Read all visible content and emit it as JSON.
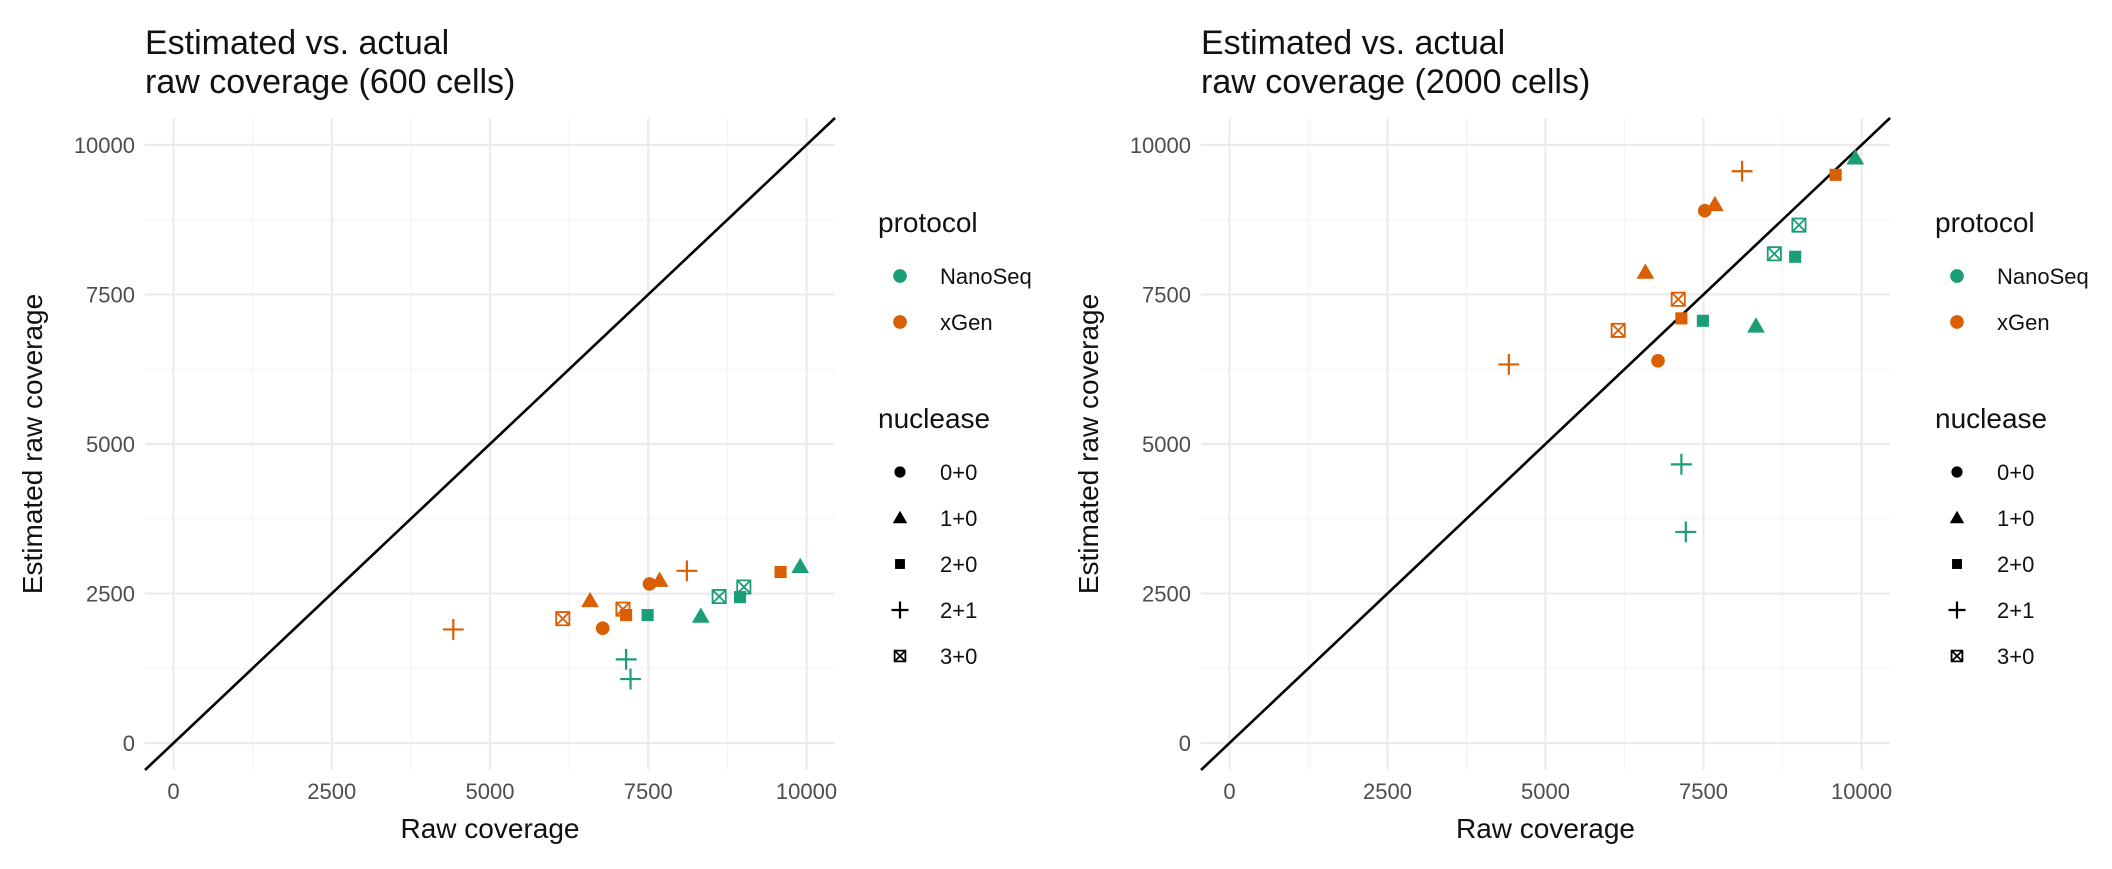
{
  "colors": {
    "NanoSeq": "#1b9e77",
    "xGen": "#d95f02",
    "legend_key": "#000000",
    "identity_line": "#000000"
  },
  "chart_data": [
    {
      "type": "scatter",
      "title": [
        "Estimated vs. actual",
        "raw coverage (600 cells)"
      ],
      "xlabel": "Raw coverage",
      "ylabel": "Estimated raw coverage",
      "xlim": [
        -450,
        10450
      ],
      "ylim": [
        -450,
        10450
      ],
      "x_ticks": [
        0,
        2500,
        5000,
        7500,
        10000
      ],
      "y_ticks": [
        0,
        2500,
        5000,
        7500,
        10000
      ],
      "x_tick_labels": [
        "0",
        "2500",
        "5000",
        "7500",
        "10000"
      ],
      "y_tick_labels": [
        "0",
        "2500",
        "5000",
        "7500",
        "10000"
      ],
      "grid": true,
      "reference_line": "y = x",
      "points": [
        {
          "x": 6780,
          "y": 1920,
          "protocol": "xGen",
          "nuclease": "0+0"
        },
        {
          "x": 7520,
          "y": 2660,
          "protocol": "xGen",
          "nuclease": "0+0"
        },
        {
          "x": 6580,
          "y": 2380,
          "protocol": "xGen",
          "nuclease": "1+0"
        },
        {
          "x": 7680,
          "y": 2720,
          "protocol": "xGen",
          "nuclease": "1+0"
        },
        {
          "x": 7150,
          "y": 2140,
          "protocol": "xGen",
          "nuclease": "2+0"
        },
        {
          "x": 9590,
          "y": 2860,
          "protocol": "xGen",
          "nuclease": "2+0"
        },
        {
          "x": 4420,
          "y": 1900,
          "protocol": "xGen",
          "nuclease": "2+1"
        },
        {
          "x": 8110,
          "y": 2880,
          "protocol": "xGen",
          "nuclease": "2+1"
        },
        {
          "x": 6150,
          "y": 2080,
          "protocol": "xGen",
          "nuclease": "3+0"
        },
        {
          "x": 7100,
          "y": 2240,
          "protocol": "xGen",
          "nuclease": "3+0"
        },
        {
          "x": 8330,
          "y": 2120,
          "protocol": "NanoSeq",
          "nuclease": "1+0"
        },
        {
          "x": 9900,
          "y": 2950,
          "protocol": "NanoSeq",
          "nuclease": "1+0"
        },
        {
          "x": 7490,
          "y": 2140,
          "protocol": "NanoSeq",
          "nuclease": "2+0"
        },
        {
          "x": 8950,
          "y": 2440,
          "protocol": "NanoSeq",
          "nuclease": "2+0"
        },
        {
          "x": 7150,
          "y": 1400,
          "protocol": "NanoSeq",
          "nuclease": "2+1"
        },
        {
          "x": 7220,
          "y": 1070,
          "protocol": "NanoSeq",
          "nuclease": "2+1"
        },
        {
          "x": 8620,
          "y": 2450,
          "protocol": "NanoSeq",
          "nuclease": "3+0"
        },
        {
          "x": 9010,
          "y": 2610,
          "protocol": "NanoSeq",
          "nuclease": "3+0"
        }
      ],
      "legends": [
        {
          "title": "protocol",
          "items": [
            {
              "label": "NanoSeq",
              "shape": "circle",
              "color": "#1b9e77"
            },
            {
              "label": "xGen",
              "shape": "circle",
              "color": "#d95f02"
            }
          ]
        },
        {
          "title": "nuclease",
          "items": [
            {
              "label": "0+0",
              "shape": "circle"
            },
            {
              "label": "1+0",
              "shape": "triangle"
            },
            {
              "label": "2+0",
              "shape": "square"
            },
            {
              "label": "2+1",
              "shape": "plus"
            },
            {
              "label": "3+0",
              "shape": "square-cross"
            }
          ]
        }
      ],
      "legend_position": "right"
    },
    {
      "type": "scatter",
      "title": [
        "Estimated vs. actual",
        "raw coverage (2000 cells)"
      ],
      "xlabel": "Raw coverage",
      "ylabel": "Estimated raw coverage",
      "xlim": [
        -450,
        10450
      ],
      "ylim": [
        -450,
        10450
      ],
      "x_ticks": [
        0,
        2500,
        5000,
        7500,
        10000
      ],
      "y_ticks": [
        0,
        2500,
        5000,
        7500,
        10000
      ],
      "x_tick_labels": [
        "0",
        "2500",
        "5000",
        "7500",
        "10000"
      ],
      "y_tick_labels": [
        "0",
        "2500",
        "5000",
        "7500",
        "10000"
      ],
      "grid": true,
      "reference_line": "y = x",
      "points": [
        {
          "x": 6780,
          "y": 6390,
          "protocol": "xGen",
          "nuclease": "0+0"
        },
        {
          "x": 7520,
          "y": 8900,
          "protocol": "xGen",
          "nuclease": "0+0"
        },
        {
          "x": 6580,
          "y": 7870,
          "protocol": "xGen",
          "nuclease": "1+0"
        },
        {
          "x": 7680,
          "y": 9000,
          "protocol": "xGen",
          "nuclease": "1+0"
        },
        {
          "x": 7150,
          "y": 7100,
          "protocol": "xGen",
          "nuclease": "2+0"
        },
        {
          "x": 9590,
          "y": 9500,
          "protocol": "xGen",
          "nuclease": "2+0"
        },
        {
          "x": 4420,
          "y": 6330,
          "protocol": "xGen",
          "nuclease": "2+1"
        },
        {
          "x": 8110,
          "y": 9560,
          "protocol": "xGen",
          "nuclease": "2+1"
        },
        {
          "x": 6150,
          "y": 6900,
          "protocol": "xGen",
          "nuclease": "3+0"
        },
        {
          "x": 7100,
          "y": 7420,
          "protocol": "xGen",
          "nuclease": "3+0"
        },
        {
          "x": 8330,
          "y": 6970,
          "protocol": "NanoSeq",
          "nuclease": "1+0"
        },
        {
          "x": 9900,
          "y": 9780,
          "protocol": "NanoSeq",
          "nuclease": "1+0"
        },
        {
          "x": 7490,
          "y": 7060,
          "protocol": "NanoSeq",
          "nuclease": "2+0"
        },
        {
          "x": 8950,
          "y": 8130,
          "protocol": "NanoSeq",
          "nuclease": "2+0"
        },
        {
          "x": 7150,
          "y": 4660,
          "protocol": "NanoSeq",
          "nuclease": "2+1"
        },
        {
          "x": 7220,
          "y": 3530,
          "protocol": "NanoSeq",
          "nuclease": "2+1"
        },
        {
          "x": 8620,
          "y": 8180,
          "protocol": "NanoSeq",
          "nuclease": "3+0"
        },
        {
          "x": 9010,
          "y": 8660,
          "protocol": "NanoSeq",
          "nuclease": "3+0"
        }
      ],
      "legends": [
        {
          "title": "protocol",
          "items": [
            {
              "label": "NanoSeq",
              "shape": "circle",
              "color": "#1b9e77"
            },
            {
              "label": "xGen",
              "shape": "circle",
              "color": "#d95f02"
            }
          ]
        },
        {
          "title": "nuclease",
          "items": [
            {
              "label": "0+0",
              "shape": "circle"
            },
            {
              "label": "1+0",
              "shape": "triangle"
            },
            {
              "label": "2+0",
              "shape": "square"
            },
            {
              "label": "2+1",
              "shape": "plus"
            },
            {
              "label": "3+0",
              "shape": "square-cross"
            }
          ]
        }
      ],
      "legend_position": "right"
    }
  ]
}
